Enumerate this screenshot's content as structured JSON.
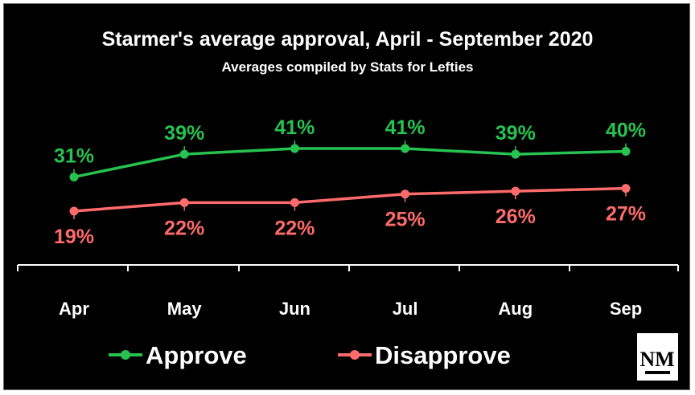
{
  "chart_data": {
    "type": "line",
    "title": "Starmer's average approval, April - September 2020",
    "subtitle": "Averages compiled by Stats for Lefties",
    "categories": [
      "Apr",
      "May",
      "Jun",
      "Jul",
      "Aug",
      "Sep"
    ],
    "series": [
      {
        "name": "Approve",
        "values": [
          31,
          39,
          41,
          41,
          39,
          40
        ],
        "labels": [
          "31%",
          "39%",
          "41%",
          "41%",
          "39%",
          "40%"
        ],
        "color": "#27c250",
        "label_position": "above"
      },
      {
        "name": "Disapprove",
        "values": [
          19,
          22,
          22,
          25,
          26,
          27
        ],
        "labels": [
          "19%",
          "22%",
          "22%",
          "25%",
          "26%",
          "27%"
        ],
        "color": "#ff6b6b",
        "label_position": "below"
      }
    ],
    "grid": false,
    "legend": "bottom",
    "logo_text": "NM"
  }
}
